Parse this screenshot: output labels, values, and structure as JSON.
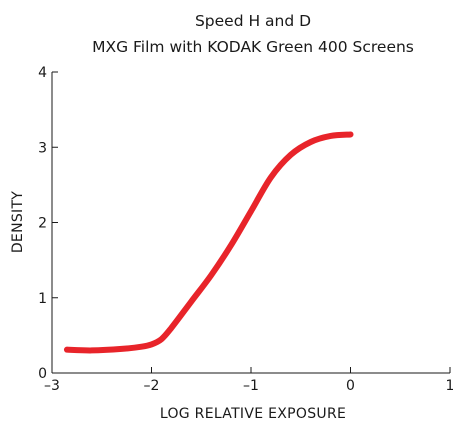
{
  "chart_data": {
    "type": "line",
    "title": "Speed H and D",
    "subtitle": "MXG Film with KODAK Green 400 Screens",
    "xlabel": "LOG RELATIVE EXPOSURE",
    "ylabel": "DENSITY",
    "xlim": [
      -3,
      1
    ],
    "ylim": [
      0,
      4
    ],
    "xticks": [
      -3,
      -2,
      -1,
      0,
      1
    ],
    "xtick_labels": [
      "–3",
      "–2",
      "–1",
      "0",
      "1"
    ],
    "yticks": [
      0,
      1,
      2,
      3,
      4
    ],
    "ytick_labels": [
      "0",
      "1",
      "2",
      "3",
      "4"
    ],
    "grid": false,
    "series": [
      {
        "color": "#e8242a",
        "x": [
          -2.85,
          -2.6,
          -2.3,
          -2.1,
          -2.0,
          -1.9,
          -1.8,
          -1.6,
          -1.4,
          -1.2,
          -1.0,
          -0.8,
          -0.6,
          -0.4,
          -0.2,
          0.0
        ],
        "y": [
          0.31,
          0.3,
          0.32,
          0.35,
          0.38,
          0.45,
          0.6,
          0.95,
          1.3,
          1.7,
          2.15,
          2.6,
          2.9,
          3.07,
          3.15,
          3.17
        ]
      }
    ]
  }
}
